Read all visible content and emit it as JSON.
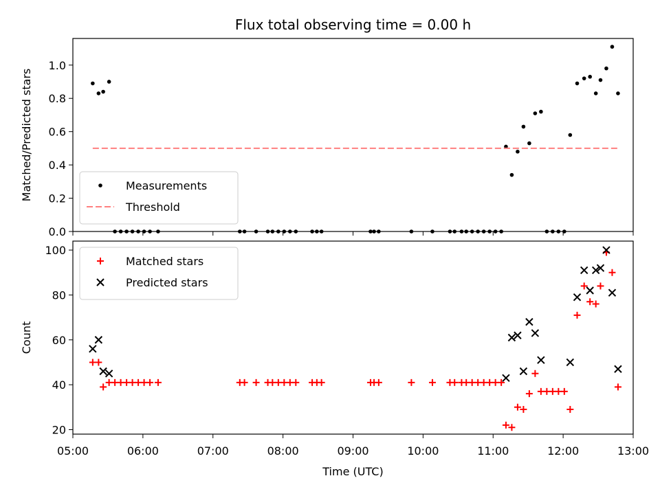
{
  "chart_data": [
    {
      "type": "scatter",
      "title": "Flux total observing time = 0.00 h",
      "ylabel": "Matched/Predicted stars",
      "xlabel": "",
      "ylim": [
        0,
        1.16
      ],
      "xlim": [
        "05:00",
        "13:00"
      ],
      "yticks": [
        "0.0",
        "0.2",
        "0.4",
        "0.6",
        "0.8",
        "1.0"
      ],
      "legend_position": "lower-left",
      "series": [
        {
          "name": "Measurements",
          "marker": "dot",
          "color": "#000000",
          "points": [
            [
              "05:17",
              0.89
            ],
            [
              "05:22",
              0.83
            ],
            [
              "05:26",
              0.84
            ],
            [
              "05:31",
              0.9
            ],
            [
              "05:36",
              0.0
            ],
            [
              "05:41",
              0.0
            ],
            [
              "05:46",
              0.0
            ],
            [
              "05:51",
              0.0
            ],
            [
              "05:56",
              0.0
            ],
            [
              "06:01",
              0.0
            ],
            [
              "06:06",
              0.0
            ],
            [
              "06:13",
              0.0
            ],
            [
              "07:23",
              0.0
            ],
            [
              "07:27",
              0.0
            ],
            [
              "07:37",
              0.0
            ],
            [
              "07:47",
              0.0
            ],
            [
              "07:51",
              0.0
            ],
            [
              "07:56",
              0.0
            ],
            [
              "08:01",
              0.0
            ],
            [
              "08:06",
              0.0
            ],
            [
              "08:11",
              0.0
            ],
            [
              "08:25",
              0.0
            ],
            [
              "08:29",
              0.0
            ],
            [
              "08:33",
              0.0
            ],
            [
              "09:15",
              0.0
            ],
            [
              "09:18",
              0.0
            ],
            [
              "09:22",
              0.0
            ],
            [
              "09:50",
              0.0
            ],
            [
              "10:08",
              0.0
            ],
            [
              "10:23",
              0.0
            ],
            [
              "10:27",
              0.0
            ],
            [
              "10:33",
              0.0
            ],
            [
              "10:37",
              0.0
            ],
            [
              "10:42",
              0.0
            ],
            [
              "10:47",
              0.0
            ],
            [
              "10:52",
              0.0
            ],
            [
              "10:57",
              0.0
            ],
            [
              "11:02",
              0.0
            ],
            [
              "11:07",
              0.0
            ],
            [
              "11:11",
              0.51
            ],
            [
              "11:16",
              0.34
            ],
            [
              "11:21",
              0.48
            ],
            [
              "11:26",
              0.63
            ],
            [
              "11:31",
              0.53
            ],
            [
              "11:36",
              0.71
            ],
            [
              "11:41",
              0.72
            ],
            [
              "11:46",
              0.0
            ],
            [
              "11:51",
              0.0
            ],
            [
              "11:56",
              0.0
            ],
            [
              "12:01",
              0.0
            ],
            [
              "12:06",
              0.58
            ],
            [
              "12:12",
              0.89
            ],
            [
              "12:18",
              0.92
            ],
            [
              "12:23",
              0.93
            ],
            [
              "12:28",
              0.83
            ],
            [
              "12:32",
              0.91
            ],
            [
              "12:37",
              0.98
            ],
            [
              "12:42",
              1.11
            ],
            [
              "12:47",
              0.83
            ]
          ]
        },
        {
          "name": "Threshold",
          "marker": "dashed-line",
          "color": "#ff7f7f",
          "points": [
            [
              "05:17",
              0.5
            ],
            [
              "12:47",
              0.5
            ]
          ]
        }
      ]
    },
    {
      "type": "scatter",
      "title": "",
      "ylabel": "Count",
      "xlabel": "Time (UTC)",
      "ylim": [
        18,
        104
      ],
      "xlim": [
        "05:00",
        "13:00"
      ],
      "yticks": [
        "20",
        "40",
        "60",
        "80",
        "100"
      ],
      "xticks": [
        "05:00",
        "06:00",
        "07:00",
        "08:00",
        "09:00",
        "10:00",
        "11:00",
        "12:00",
        "13:00"
      ],
      "legend_position": "upper-left",
      "series": [
        {
          "name": "Matched stars",
          "marker": "plus",
          "color": "#ff0000",
          "points": [
            [
              "05:17",
              50
            ],
            [
              "05:22",
              50
            ],
            [
              "05:26",
              39
            ],
            [
              "05:31",
              41
            ],
            [
              "05:36",
              41
            ],
            [
              "05:41",
              41
            ],
            [
              "05:46",
              41
            ],
            [
              "05:51",
              41
            ],
            [
              "05:56",
              41
            ],
            [
              "06:01",
              41
            ],
            [
              "06:06",
              41
            ],
            [
              "06:13",
              41
            ],
            [
              "07:23",
              41
            ],
            [
              "07:27",
              41
            ],
            [
              "07:37",
              41
            ],
            [
              "07:47",
              41
            ],
            [
              "07:51",
              41
            ],
            [
              "07:56",
              41
            ],
            [
              "08:01",
              41
            ],
            [
              "08:06",
              41
            ],
            [
              "08:11",
              41
            ],
            [
              "08:25",
              41
            ],
            [
              "08:29",
              41
            ],
            [
              "08:33",
              41
            ],
            [
              "09:15",
              41
            ],
            [
              "09:18",
              41
            ],
            [
              "09:22",
              41
            ],
            [
              "09:50",
              41
            ],
            [
              "10:08",
              41
            ],
            [
              "10:23",
              41
            ],
            [
              "10:27",
              41
            ],
            [
              "10:33",
              41
            ],
            [
              "10:37",
              41
            ],
            [
              "10:42",
              41
            ],
            [
              "10:47",
              41
            ],
            [
              "10:52",
              41
            ],
            [
              "10:57",
              41
            ],
            [
              "11:02",
              41
            ],
            [
              "11:07",
              41
            ],
            [
              "11:11",
              22
            ],
            [
              "11:16",
              21
            ],
            [
              "11:21",
              30
            ],
            [
              "11:26",
              29
            ],
            [
              "11:31",
              36
            ],
            [
              "11:36",
              45
            ],
            [
              "11:41",
              37
            ],
            [
              "11:46",
              37
            ],
            [
              "11:51",
              37
            ],
            [
              "11:56",
              37
            ],
            [
              "12:01",
              37
            ],
            [
              "12:06",
              29
            ],
            [
              "12:12",
              71
            ],
            [
              "12:18",
              84
            ],
            [
              "12:23",
              77
            ],
            [
              "12:28",
              76
            ],
            [
              "12:32",
              84
            ],
            [
              "12:37",
              99
            ],
            [
              "12:42",
              90
            ],
            [
              "12:47",
              39
            ]
          ]
        },
        {
          "name": "Predicted stars",
          "marker": "x",
          "color": "#000000",
          "points": [
            [
              "05:17",
              56
            ],
            [
              "05:22",
              60
            ],
            [
              "05:26",
              46
            ],
            [
              "05:31",
              45
            ],
            [
              "11:11",
              43
            ],
            [
              "11:16",
              61
            ],
            [
              "11:21",
              62
            ],
            [
              "11:26",
              46
            ],
            [
              "11:31",
              68
            ],
            [
              "11:36",
              63
            ],
            [
              "11:41",
              51
            ],
            [
              "12:06",
              50
            ],
            [
              "12:12",
              79
            ],
            [
              "12:18",
              91
            ],
            [
              "12:23",
              82
            ],
            [
              "12:28",
              91
            ],
            [
              "12:32",
              92
            ],
            [
              "12:37",
              100
            ],
            [
              "12:42",
              81
            ],
            [
              "12:47",
              47
            ]
          ]
        }
      ]
    }
  ]
}
